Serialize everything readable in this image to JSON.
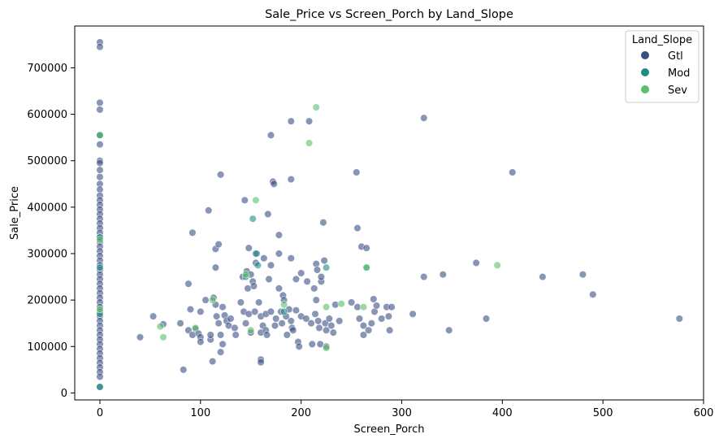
{
  "chart_data": {
    "type": "scatter",
    "title": "Sale_Price vs Screen_Porch by Land_Slope",
    "xlabel": "Screen_Porch",
    "ylabel": "Sale_Price",
    "xlim": [
      -25,
      600
    ],
    "ylim": [
      -15000,
      790000
    ],
    "xticks": [
      0,
      100,
      200,
      300,
      400,
      500,
      600
    ],
    "yticks": [
      0,
      100000,
      200000,
      300000,
      400000,
      500000,
      600000,
      700000
    ],
    "grid": false,
    "legend": {
      "title": "Land_Slope",
      "placement": "top-right"
    },
    "series": [
      {
        "name": "Gtl",
        "color": "#3b4e84",
        "points": [
          [
            0,
            755000
          ],
          [
            0,
            745000
          ],
          [
            0,
            625000
          ],
          [
            0,
            610000
          ],
          [
            0,
            555000
          ],
          [
            0,
            535000
          ],
          [
            0,
            500000
          ],
          [
            0,
            495000
          ],
          [
            0,
            480000
          ],
          [
            0,
            465000
          ],
          [
            0,
            450000
          ],
          [
            0,
            438000
          ],
          [
            0,
            425000
          ],
          [
            0,
            415000
          ],
          [
            0,
            405000
          ],
          [
            0,
            395000
          ],
          [
            0,
            385000
          ],
          [
            0,
            375000
          ],
          [
            0,
            365000
          ],
          [
            0,
            355000
          ],
          [
            0,
            345000
          ],
          [
            0,
            335000
          ],
          [
            0,
            325000
          ],
          [
            0,
            315000
          ],
          [
            0,
            305000
          ],
          [
            0,
            295000
          ],
          [
            0,
            285000
          ],
          [
            0,
            275000
          ],
          [
            0,
            265000
          ],
          [
            0,
            255000
          ],
          [
            0,
            245000
          ],
          [
            0,
            235000
          ],
          [
            0,
            225000
          ],
          [
            0,
            215000
          ],
          [
            0,
            205000
          ],
          [
            0,
            195000
          ],
          [
            0,
            185000
          ],
          [
            0,
            175000
          ],
          [
            0,
            165000
          ],
          [
            0,
            155000
          ],
          [
            0,
            145000
          ],
          [
            0,
            135000
          ],
          [
            0,
            125000
          ],
          [
            0,
            115000
          ],
          [
            0,
            105000
          ],
          [
            0,
            95000
          ],
          [
            0,
            85000
          ],
          [
            0,
            75000
          ],
          [
            0,
            65000
          ],
          [
            0,
            55000
          ],
          [
            0,
            45000
          ],
          [
            0,
            35000
          ],
          [
            0,
            13000
          ],
          [
            40,
            120000
          ],
          [
            53,
            165000
          ],
          [
            63,
            148000
          ],
          [
            80,
            150000
          ],
          [
            83,
            50000
          ],
          [
            88,
            135000
          ],
          [
            88,
            235000
          ],
          [
            90,
            180000
          ],
          [
            92,
            125000
          ],
          [
            92,
            345000
          ],
          [
            95,
            138000
          ],
          [
            98,
            128000
          ],
          [
            100,
            175000
          ],
          [
            100,
            120000
          ],
          [
            100,
            110000
          ],
          [
            105,
            200000
          ],
          [
            108,
            393000
          ],
          [
            110,
            115000
          ],
          [
            110,
            125000
          ],
          [
            112,
            68000
          ],
          [
            113,
            205000
          ],
          [
            115,
            270000
          ],
          [
            115,
            310000
          ],
          [
            115,
            190000
          ],
          [
            116,
            165000
          ],
          [
            118,
            150000
          ],
          [
            118,
            320000
          ],
          [
            120,
            470000
          ],
          [
            120,
            125000
          ],
          [
            120,
            88000
          ],
          [
            122,
            185000
          ],
          [
            122,
            105000
          ],
          [
            124,
            167000
          ],
          [
            126,
            155000
          ],
          [
            128,
            145000
          ],
          [
            130,
            160000
          ],
          [
            134,
            140000
          ],
          [
            135,
            125000
          ],
          [
            140,
            195000
          ],
          [
            142,
            250000
          ],
          [
            143,
            175000
          ],
          [
            144,
            415000
          ],
          [
            145,
            150000
          ],
          [
            146,
            262000
          ],
          [
            147,
            225000
          ],
          [
            148,
            312000
          ],
          [
            148,
            170000
          ],
          [
            150,
            255000
          ],
          [
            150,
            130000
          ],
          [
            152,
            240000
          ],
          [
            153,
            230000
          ],
          [
            154,
            175000
          ],
          [
            155,
            280000
          ],
          [
            156,
            300000
          ],
          [
            158,
            195000
          ],
          [
            160,
            165000
          ],
          [
            160,
            130000
          ],
          [
            160,
            72000
          ],
          [
            160,
            66000
          ],
          [
            162,
            145000
          ],
          [
            163,
            290000
          ],
          [
            165,
            170000
          ],
          [
            165,
            135000
          ],
          [
            166,
            125000
          ],
          [
            167,
            385000
          ],
          [
            168,
            245000
          ],
          [
            170,
            555000
          ],
          [
            170,
            275000
          ],
          [
            170,
            175000
          ],
          [
            172,
            455000
          ],
          [
            173,
            450000
          ],
          [
            174,
            145000
          ],
          [
            175,
            160000
          ],
          [
            178,
            340000
          ],
          [
            178,
            300000
          ],
          [
            178,
            225000
          ],
          [
            180,
            175000
          ],
          [
            181,
            150000
          ],
          [
            182,
            210000
          ],
          [
            183,
            200000
          ],
          [
            185,
            165000
          ],
          [
            186,
            125000
          ],
          [
            188,
            180000
          ],
          [
            190,
            585000
          ],
          [
            190,
            460000
          ],
          [
            190,
            290000
          ],
          [
            190,
            155000
          ],
          [
            191,
            140000
          ],
          [
            192,
            135000
          ],
          [
            195,
            245000
          ],
          [
            195,
            178000
          ],
          [
            197,
            110000
          ],
          [
            198,
            100000
          ],
          [
            200,
            258000
          ],
          [
            200,
            165000
          ],
          [
            205,
            160000
          ],
          [
            206,
            240000
          ],
          [
            208,
            585000
          ],
          [
            210,
            150000
          ],
          [
            211,
            105000
          ],
          [
            213,
            225000
          ],
          [
            214,
            170000
          ],
          [
            215,
            278000
          ],
          [
            215,
            200000
          ],
          [
            216,
            265000
          ],
          [
            217,
            155000
          ],
          [
            218,
            140000
          ],
          [
            219,
            105000
          ],
          [
            220,
            240000
          ],
          [
            220,
            250000
          ],
          [
            222,
            367000
          ],
          [
            223,
            285000
          ],
          [
            224,
            150000
          ],
          [
            225,
            135000
          ],
          [
            225,
            100000
          ],
          [
            228,
            160000
          ],
          [
            230,
            145000
          ],
          [
            232,
            130000
          ],
          [
            234,
            190000
          ],
          [
            238,
            155000
          ],
          [
            250,
            195000
          ],
          [
            255,
            475000
          ],
          [
            256,
            355000
          ],
          [
            256,
            185000
          ],
          [
            258,
            160000
          ],
          [
            260,
            315000
          ],
          [
            262,
            145000
          ],
          [
            262,
            125000
          ],
          [
            265,
            312000
          ],
          [
            267,
            135000
          ],
          [
            270,
            150000
          ],
          [
            272,
            202000
          ],
          [
            273,
            175000
          ],
          [
            275,
            188000
          ],
          [
            280,
            160000
          ],
          [
            285,
            185000
          ],
          [
            287,
            165000
          ],
          [
            288,
            135000
          ],
          [
            290,
            185000
          ],
          [
            311,
            170000
          ],
          [
            322,
            592000
          ],
          [
            322,
            250000
          ],
          [
            341,
            255000
          ],
          [
            347,
            135000
          ],
          [
            374,
            280000
          ],
          [
            384,
            160000
          ],
          [
            410,
            475000
          ],
          [
            440,
            250000
          ],
          [
            480,
            255000
          ],
          [
            490,
            212000
          ],
          [
            576,
            160000
          ]
        ]
      },
      {
        "name": "Mod",
        "color": "#1f8c84",
        "points": [
          [
            0,
            555000
          ],
          [
            0,
            335000
          ],
          [
            0,
            270000
          ],
          [
            0,
            170000
          ],
          [
            0,
            13000
          ],
          [
            145,
            250000
          ],
          [
            152,
            375000
          ],
          [
            155,
            300000
          ],
          [
            157,
            275000
          ],
          [
            183,
            175000
          ],
          [
            225,
            270000
          ],
          [
            265,
            270000
          ]
        ]
      },
      {
        "name": "Sev",
        "color": "#5cc06a",
        "points": [
          [
            0,
            555000
          ],
          [
            0,
            330000
          ],
          [
            0,
            180000
          ],
          [
            60,
            143000
          ],
          [
            63,
            120000
          ],
          [
            95,
            140000
          ],
          [
            112,
            200000
          ],
          [
            145,
            255000
          ],
          [
            150,
            135000
          ],
          [
            155,
            415000
          ],
          [
            183,
            190000
          ],
          [
            208,
            538000
          ],
          [
            215,
            615000
          ],
          [
            225,
            185000
          ],
          [
            225,
            97000
          ],
          [
            240,
            192000
          ],
          [
            262,
            185000
          ],
          [
            265,
            270000
          ],
          [
            395,
            275000
          ]
        ]
      }
    ]
  }
}
